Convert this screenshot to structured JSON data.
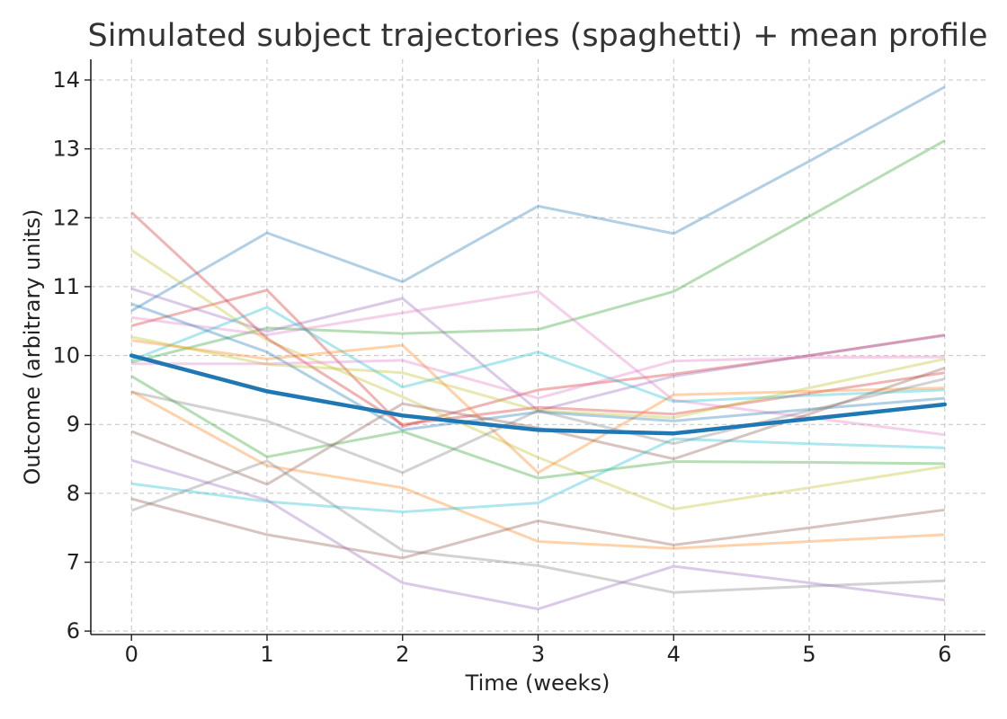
{
  "chart_data": {
    "type": "line",
    "title": "Simulated subject trajectories (spaghetti) + mean profile",
    "xlabel": "Time (weeks)",
    "ylabel": "Outcome (arbitrary units)",
    "xlim": [
      -0.3,
      6.3
    ],
    "ylim": [
      5.95,
      14.3
    ],
    "x": [
      0,
      1,
      2,
      3,
      4,
      5,
      6
    ],
    "xticks": [
      0,
      1,
      2,
      3,
      4,
      5,
      6
    ],
    "yticks": [
      6,
      7,
      8,
      9,
      10,
      11,
      12,
      13,
      14
    ],
    "grid": true,
    "legend": "none",
    "series": [
      {
        "color": "#1f77b4",
        "values": [
          10.65,
          11.78,
          11.07,
          12.17,
          11.77,
          12.82,
          13.9
        ]
      },
      {
        "color": "#2ca02c",
        "values": [
          9.9,
          10.4,
          10.32,
          10.38,
          10.93,
          12.02,
          13.12
        ]
      },
      {
        "color": "#d62728",
        "values": [
          10.43,
          10.95,
          8.97,
          9.5,
          9.73,
          10.0,
          10.3
        ]
      },
      {
        "color": "#9467bd",
        "values": [
          10.97,
          10.35,
          10.83,
          9.2,
          9.7,
          10.0,
          10.29
        ]
      },
      {
        "color": "#e377c2",
        "values": [
          10.55,
          10.3,
          10.62,
          10.93,
          9.35,
          9.1,
          8.85
        ]
      },
      {
        "color": "#bcbd22",
        "values": [
          11.53,
          10.22,
          9.4,
          8.52,
          7.77,
          8.08,
          8.39
        ]
      },
      {
        "color": "#d62728",
        "values": [
          12.08,
          10.25,
          9.0,
          9.25,
          9.15,
          9.45,
          9.75
        ]
      },
      {
        "color": "#17becf",
        "values": [
          9.93,
          10.7,
          9.54,
          10.05,
          9.33,
          9.42,
          9.5
        ]
      },
      {
        "color": "#ff7f0e",
        "values": [
          10.22,
          9.95,
          10.15,
          8.3,
          9.43,
          9.48,
          9.53
        ]
      },
      {
        "color": "#bcbd22",
        "values": [
          10.27,
          9.87,
          9.75,
          9.2,
          9.1,
          9.53,
          9.95
        ]
      },
      {
        "color": "#1f77b4",
        "values": [
          10.75,
          10.05,
          8.92,
          9.18,
          9.05,
          9.22,
          9.38
        ]
      },
      {
        "color": "#e377c2",
        "values": [
          9.88,
          9.88,
          9.93,
          9.38,
          9.92,
          9.97,
          9.98
        ]
      },
      {
        "color": "#2ca02c",
        "values": [
          9.7,
          8.53,
          8.9,
          8.22,
          8.46,
          8.45,
          8.43
        ]
      },
      {
        "color": "#7f7f7f",
        "values": [
          9.47,
          9.05,
          8.3,
          9.2,
          8.72,
          9.2,
          9.66
        ]
      },
      {
        "color": "#8c564b",
        "values": [
          8.9,
          8.13,
          9.3,
          8.95,
          8.5,
          9.15,
          9.82
        ]
      },
      {
        "color": "#ff7f0e",
        "values": [
          9.48,
          8.4,
          8.08,
          7.3,
          7.2,
          7.3,
          7.4
        ]
      },
      {
        "color": "#17becf",
        "values": [
          8.14,
          7.88,
          7.73,
          7.86,
          8.79,
          8.72,
          8.66
        ]
      },
      {
        "color": "#7f7f7f",
        "values": [
          7.75,
          8.47,
          7.17,
          6.95,
          6.56,
          6.65,
          6.73
        ]
      },
      {
        "color": "#8c564b",
        "values": [
          7.92,
          7.4,
          7.06,
          7.6,
          7.25,
          7.5,
          7.76
        ]
      },
      {
        "color": "#9467bd",
        "values": [
          8.48,
          7.9,
          6.7,
          6.32,
          6.94,
          6.7,
          6.45
        ]
      }
    ],
    "mean_profile": {
      "color": "#1f77b4",
      "values": [
        10.0,
        9.48,
        9.13,
        8.92,
        8.87,
        9.08,
        9.29
      ]
    }
  }
}
